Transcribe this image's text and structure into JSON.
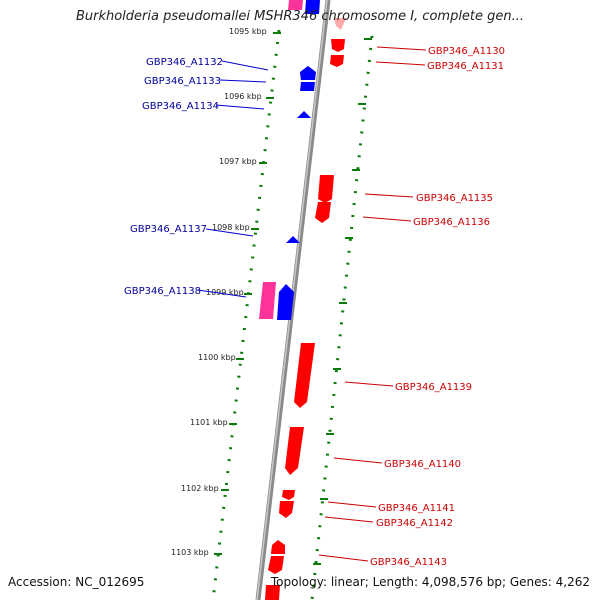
{
  "title": "Burkholderia pseudomallei MSHR346 chromosome I, complete gen...",
  "footer": {
    "accession": "Accession: NC_012695",
    "summary": "Topology: linear; Length: 4,098,576 bp; Genes: 4,262"
  },
  "colors": {
    "forward_gene": "#0000ff",
    "reverse_gene": "#ff0000",
    "rna_gene": "#ff3399",
    "forward_label": "#000099",
    "reverse_label": "#cc0000",
    "scale_ticks": "#006600",
    "backbone": "#808080"
  },
  "scale": {
    "unit": "kbp",
    "ticks": [
      {
        "label": "1095 kbp",
        "kbp": 1095
      },
      {
        "label": "1096 kbp",
        "kbp": 1096
      },
      {
        "label": "1097 kbp",
        "kbp": 1097
      },
      {
        "label": "1098 kbp",
        "kbp": 1098
      },
      {
        "label": "1099 kbp",
        "kbp": 1099
      },
      {
        "label": "1100 kbp",
        "kbp": 1100
      },
      {
        "label": "1101 kbp",
        "kbp": 1101
      },
      {
        "label": "1102 kbp",
        "kbp": 1102
      },
      {
        "label": "1103 kbp",
        "kbp": 1103
      }
    ]
  },
  "genes": {
    "forward": [
      {
        "label": "GBP346_A1132"
      },
      {
        "label": "GBP346_A1133"
      },
      {
        "label": "GBP346_A1134"
      },
      {
        "label": "GBP346_A1137"
      },
      {
        "label": "GBP346_A1138"
      }
    ],
    "reverse": [
      {
        "label": "GBP346_A1130"
      },
      {
        "label": "GBP346_A1131"
      },
      {
        "label": "GBP346_A1135"
      },
      {
        "label": "GBP346_A1136"
      },
      {
        "label": "GBP346_A1139"
      },
      {
        "label": "GBP346_A1140"
      },
      {
        "label": "GBP346_A1141"
      },
      {
        "label": "GBP346_A1142"
      },
      {
        "label": "GBP346_A1143"
      }
    ]
  }
}
